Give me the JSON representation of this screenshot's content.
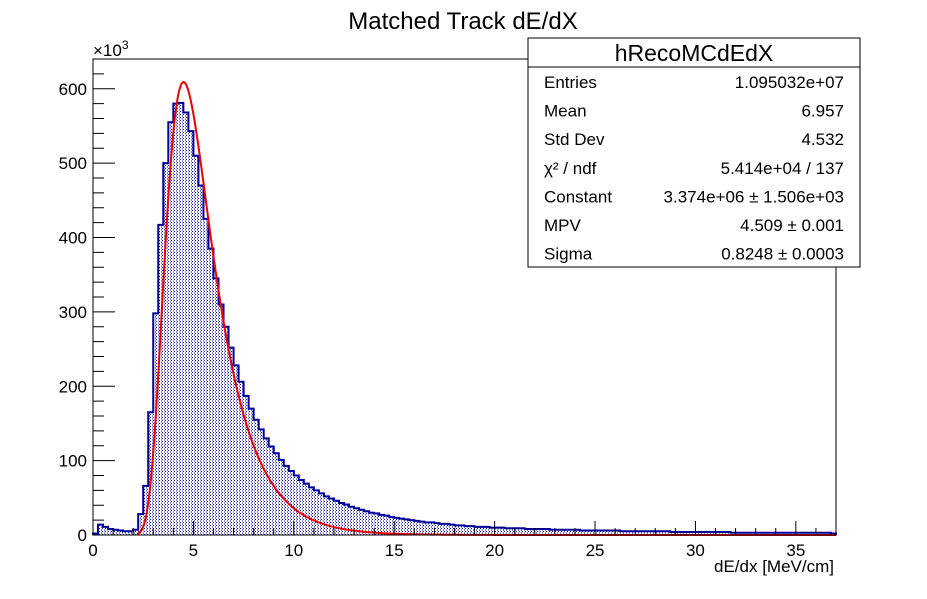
{
  "chart_data": {
    "type": "histogram",
    "title": "Matched Track dE/dX",
    "xlabel": "dE/dx [MeV/cm]",
    "ylabel": "",
    "y_multiplier_label": "×10",
    "y_multiplier_exp": "3",
    "xlim": [
      0,
      37
    ],
    "ylim": [
      0,
      640
    ],
    "x_ticks": [
      "0",
      "5",
      "10",
      "15",
      "20",
      "25",
      "30",
      "35"
    ],
    "y_ticks": [
      "0",
      "100",
      "200",
      "300",
      "400",
      "500",
      "600"
    ],
    "bin_width": 0.25,
    "bin_start": 0,
    "histogram_values_x1000": [
      2,
      14,
      11,
      8,
      7,
      6,
      5,
      5,
      7,
      28,
      66,
      165,
      298,
      417,
      500,
      555,
      580,
      581,
      568,
      543,
      510,
      470,
      425,
      385,
      345,
      310,
      280,
      252,
      228,
      206,
      187,
      170,
      155,
      142,
      130,
      119,
      110,
      101,
      93,
      86,
      80,
      74,
      69,
      64,
      60,
      56,
      52,
      49,
      46,
      43,
      41,
      38,
      36,
      34,
      32,
      30,
      29,
      27,
      26,
      24,
      23,
      22,
      21,
      20,
      19,
      18,
      17,
      17,
      16,
      15,
      15,
      14,
      13,
      13,
      12,
      12,
      11,
      11,
      11,
      10,
      10,
      10,
      9,
      9,
      9,
      9,
      8,
      8,
      8,
      8,
      8,
      7,
      7,
      7,
      7,
      7,
      7,
      6,
      6,
      6,
      6,
      6,
      6,
      6,
      6,
      5,
      5,
      5,
      5,
      5,
      5,
      5,
      5,
      5,
      5,
      4,
      4,
      4,
      4,
      4,
      4,
      4,
      4,
      4,
      4,
      4,
      4,
      3,
      3,
      3,
      3,
      3,
      3,
      3,
      3,
      3,
      3,
      3,
      3,
      3,
      3,
      3,
      3,
      3,
      3,
      3,
      3,
      2
    ],
    "fit": {
      "function": "landau",
      "constant": 3374000,
      "mpv": 4.509,
      "sigma": 0.8248,
      "x_range": [
        2.2,
        37
      ]
    },
    "colors": {
      "histogram_line": "#000099",
      "histogram_fill": "#9999cc",
      "fit_line": "#ee0000"
    },
    "stats_box": {
      "title": "hRecoMCdEdX",
      "placement": "top-right",
      "rows": [
        {
          "label": "Entries",
          "value": "1.095032e+07"
        },
        {
          "label": "Mean",
          "value": "6.957"
        },
        {
          "label": "Std Dev",
          "value": "4.532"
        },
        {
          "label": "χ² / ndf",
          "value": "5.414e+04 / 137"
        },
        {
          "label": "Constant",
          "value": "3.374e+06 ± 1.506e+03"
        },
        {
          "label": "MPV",
          "value": "4.509 ± 0.001"
        },
        {
          "label": "Sigma",
          "value": "0.8248 ± 0.0003"
        }
      ]
    }
  }
}
